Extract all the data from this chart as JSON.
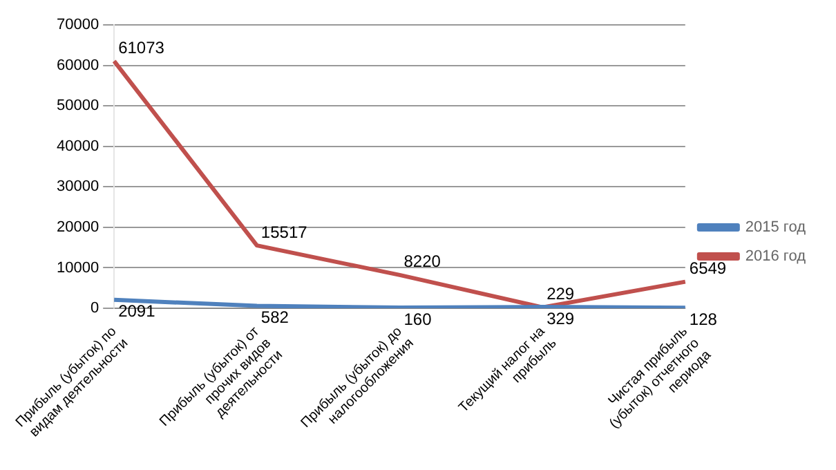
{
  "chart_data": {
    "type": "line",
    "categories": [
      "Прибыль (убыток) по видам деятельности",
      "Прибыль (убыток) от прочих видов деятельности",
      "Прибыль (убыток) до налогообложения",
      "Текущий налог на прибыль",
      "Чистая прибыль (убыток) отчетного периода"
    ],
    "series": [
      {
        "name": "2015 год",
        "color": "#4f81bd",
        "values": [
          2091,
          582,
          160,
          329,
          128
        ]
      },
      {
        "name": "2016 год",
        "color": "#c0504d",
        "values": [
          61073,
          15517,
          8220,
          229,
          6549
        ]
      }
    ],
    "ylim": [
      0,
      70000
    ],
    "yticks": [
      0,
      10000,
      20000,
      30000,
      40000,
      50000,
      60000,
      70000
    ],
    "grid": "y",
    "legend": "right",
    "data_labels": true,
    "marker": "none"
  }
}
